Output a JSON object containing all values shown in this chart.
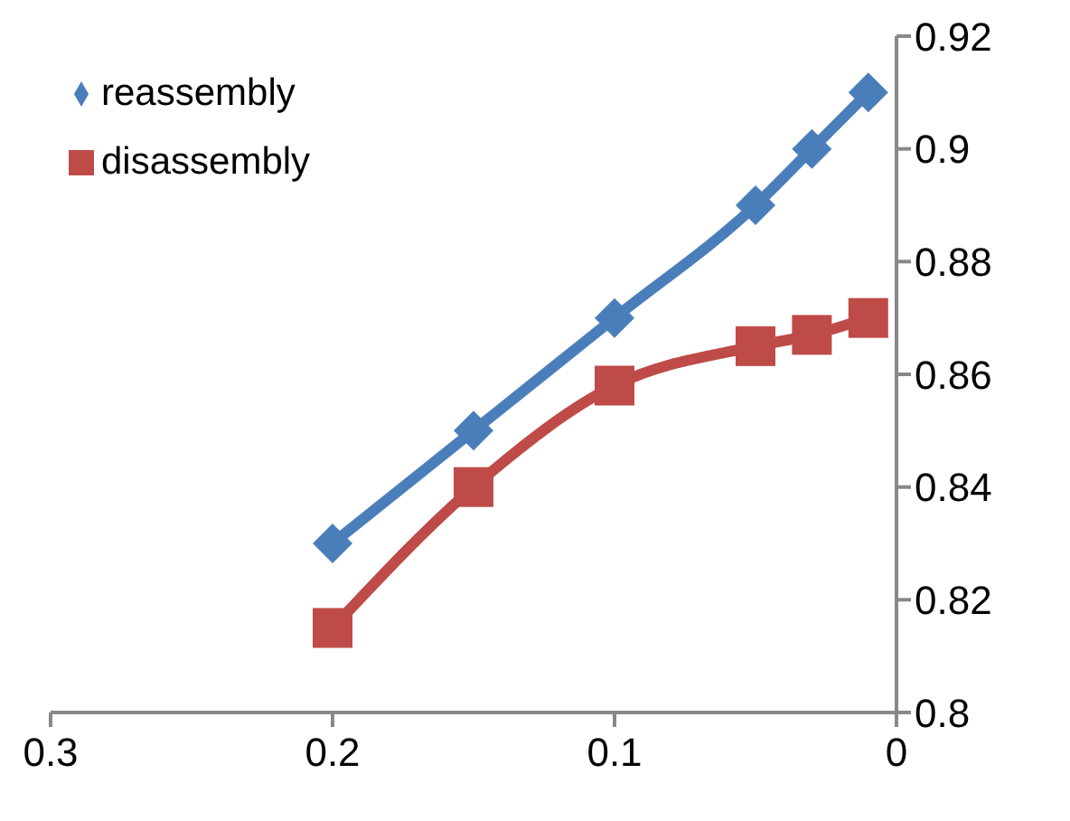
{
  "chart_data": {
    "type": "line",
    "x": [
      0.2,
      0.15,
      0.1,
      0.05,
      0.03,
      0.01
    ],
    "series": [
      {
        "name": "reassembly",
        "color": "#4a7ebb",
        "marker": "diamond",
        "values": [
          0.83,
          0.85,
          0.87,
          0.89,
          0.9,
          0.91
        ]
      },
      {
        "name": "disassembly",
        "color": "#be4b48",
        "marker": "square",
        "values": [
          0.815,
          0.84,
          0.858,
          0.865,
          0.867,
          0.87
        ]
      }
    ],
    "xlim": [
      0.3,
      0
    ],
    "xticks": [
      0.3,
      0.2,
      0.1,
      0
    ],
    "ylim": [
      0.8,
      0.92
    ],
    "yticks": [
      0.8,
      0.82,
      0.84,
      0.86,
      0.88,
      0.9,
      0.92
    ],
    "grid": false,
    "legend": "top left",
    "line_style": "solid"
  }
}
